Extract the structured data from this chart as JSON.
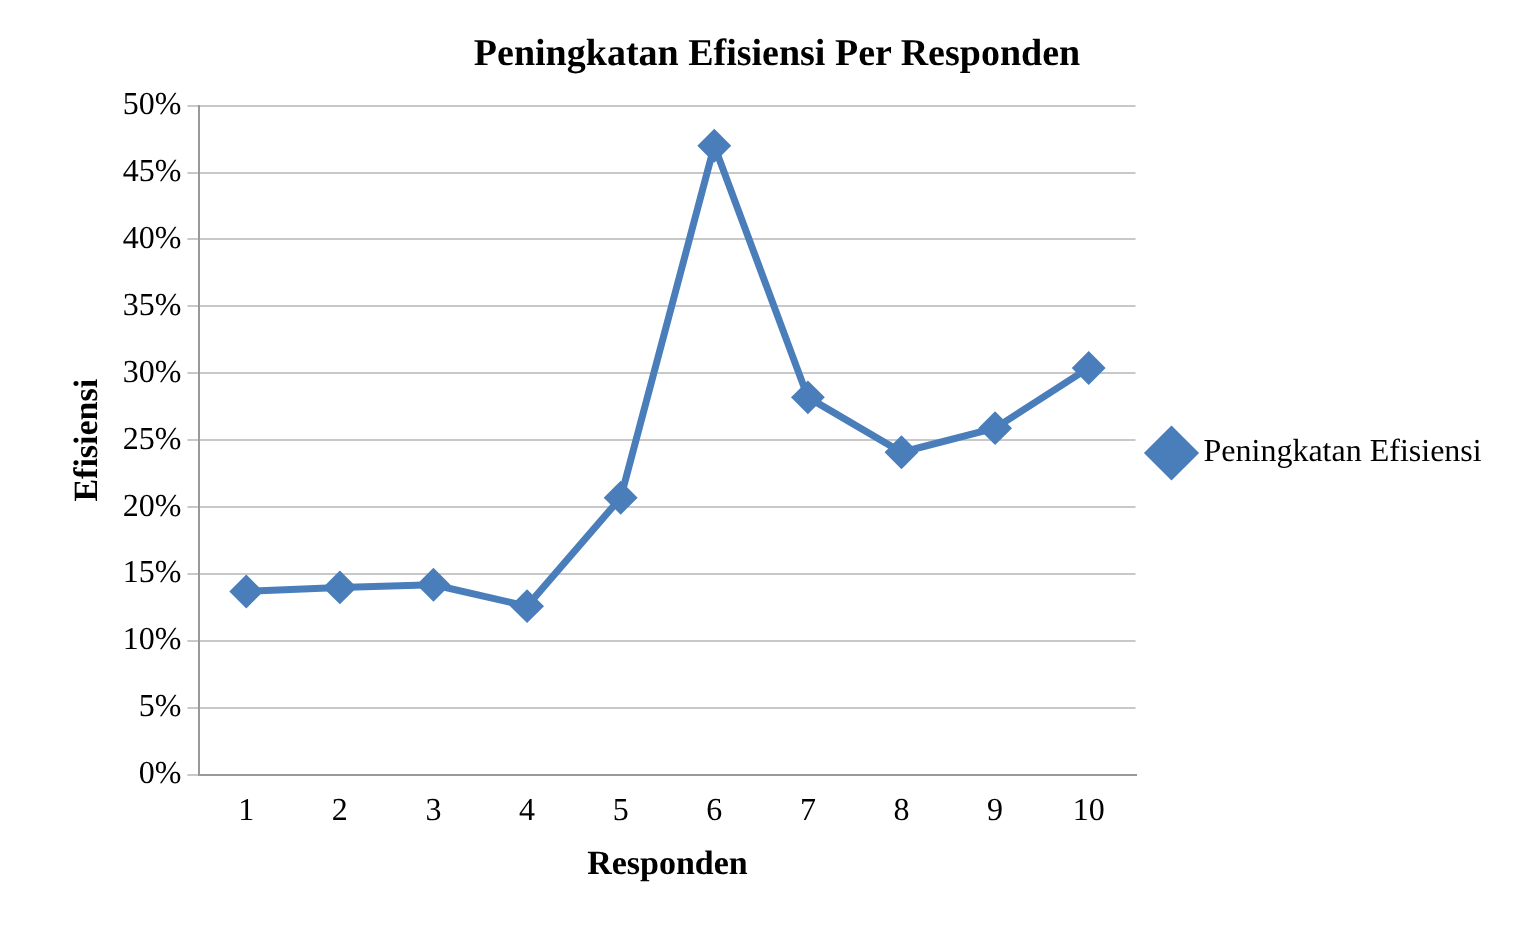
{
  "chart_data": {
    "type": "line",
    "title": "Peningkatan Efisiensi Per Responden",
    "xlabel": "Responden",
    "ylabel": "Efisiensi",
    "categories": [
      "1",
      "2",
      "3",
      "4",
      "5",
      "6",
      "7",
      "8",
      "9",
      "10"
    ],
    "series": [
      {
        "name": "Peningkatan Efisiensi",
        "color": "#4a7ebb",
        "values": [
          13.7,
          14.0,
          14.2,
          12.6,
          20.7,
          47.0,
          28.2,
          24.1,
          25.9,
          30.4
        ]
      }
    ],
    "ylim": [
      0,
      50
    ],
    "yticks": [
      {
        "value": 0,
        "label": "0%"
      },
      {
        "value": 5,
        "label": "5%"
      },
      {
        "value": 10,
        "label": "10%"
      },
      {
        "value": 15,
        "label": "15%"
      },
      {
        "value": 20,
        "label": "20%"
      },
      {
        "value": 25,
        "label": "25%"
      },
      {
        "value": 30,
        "label": "30%"
      },
      {
        "value": 35,
        "label": "35%"
      },
      {
        "value": 40,
        "label": "40%"
      },
      {
        "value": 45,
        "label": "45%"
      },
      {
        "value": 50,
        "label": "50%"
      }
    ],
    "grid": "y",
    "legend": "right",
    "marker": "diamond",
    "line_style": "solid"
  }
}
